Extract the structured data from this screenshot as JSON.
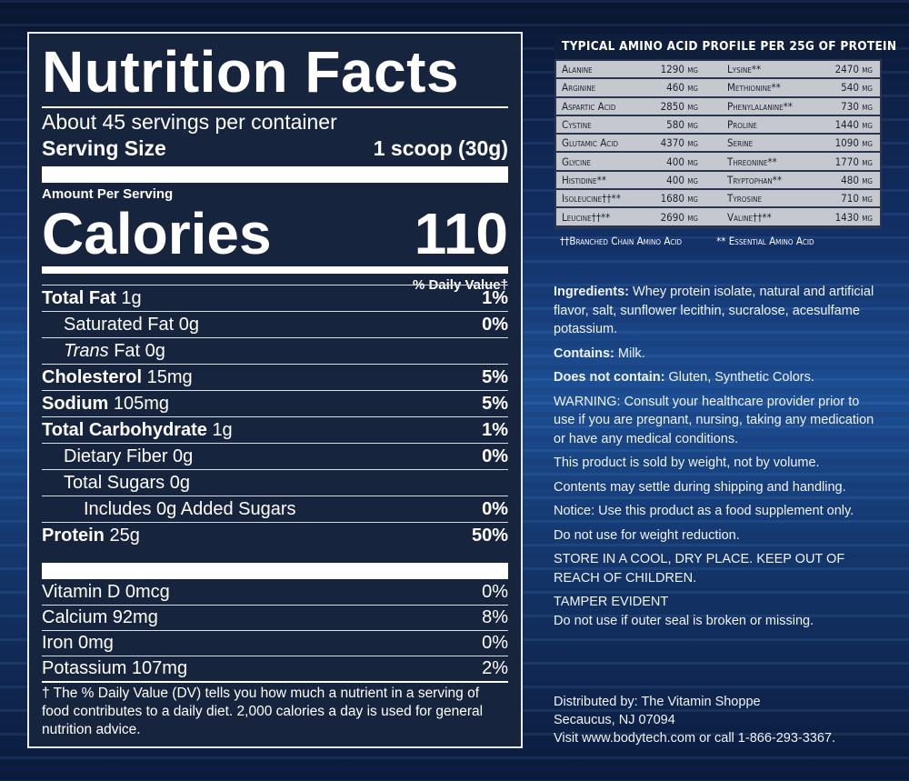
{
  "label": {
    "title": "Nutrition Facts",
    "servings": "About 45 servings per container",
    "serving_size_label": "Serving Size",
    "serving_size_value": "1 scoop (30g)",
    "amount_per_serving": "Amount Per Serving",
    "calories_label": "Calories",
    "calories_value": "110",
    "daily_value_header": "% Daily Value†",
    "nutrients": [
      {
        "name": "Total Fat",
        "amount": "1g",
        "dv": "1%"
      },
      {
        "name": "Saturated Fat",
        "amount": "0g",
        "dv": "0%"
      },
      {
        "name": "Trans",
        "suffix": "Fat 0g",
        "dv": ""
      },
      {
        "name": "Cholesterol",
        "amount": "15mg",
        "dv": "5%"
      },
      {
        "name": "Sodium",
        "amount": "105mg",
        "dv": "5%"
      },
      {
        "name": "Total Carbohydrate",
        "amount": "1g",
        "dv": "1%"
      },
      {
        "name": "Dietary Fiber",
        "amount": "0g",
        "dv": "0%"
      },
      {
        "name": "Total Sugars",
        "amount": "0g",
        "dv": ""
      },
      {
        "name": "Includes 0g Added Sugars",
        "amount": "",
        "dv": "0%"
      },
      {
        "name": "Protein",
        "amount": "25g",
        "dv": "50%"
      }
    ],
    "vitamins": [
      {
        "name": "Vitamin D 0mcg",
        "dv": "0%"
      },
      {
        "name": "Calcium 92mg",
        "dv": "8%"
      },
      {
        "name": "Iron 0mg",
        "dv": "0%"
      },
      {
        "name": "Potassium 107mg",
        "dv": "2%"
      }
    ],
    "footnote": "† The % Daily Value (DV) tells you how much a nutrient in a serving of food contributes to a daily diet. 2,000 calories a day is used for general nutrition advice."
  },
  "amino": {
    "title": "TYPICAL AMINO ACID PROFILE PER 25G OF PROTEIN",
    "rows": [
      [
        "Alanine",
        "1290 mg",
        "Lysine**",
        "2470 mg"
      ],
      [
        "Arginine",
        "460 mg",
        "Methionine**",
        "540 mg"
      ],
      [
        "Aspartic Acid",
        "2850 mg",
        "Phenylalanine**",
        "730 mg"
      ],
      [
        "Cystine",
        "580 mg",
        "Proline",
        "1440 mg"
      ],
      [
        "Glutamic Acid",
        "4370 mg",
        "Serine",
        "1090 mg"
      ],
      [
        "Glycine",
        "400 mg",
        "Threonine**",
        "1770 mg"
      ],
      [
        "Histidine**",
        "400 mg",
        "Tryptophan**",
        "480 mg"
      ],
      [
        "Isoleucine††**",
        "1680 mg",
        "Tyrosine",
        "710 mg"
      ],
      [
        "Leucine††**",
        "2690 mg",
        "Valine††**",
        "1430 mg"
      ]
    ],
    "legend_bcaa": "††Branched Chain Amino Acid",
    "legend_essential": "** Essential Amino Acid"
  },
  "info": {
    "ingredients_label": "Ingredients:",
    "ingredients": " Whey protein isolate, natural and artificial flavor, salt, sunflower lecithin, sucralose, acesulfame potassium.",
    "contains_label": "Contains:",
    "contains": " Milk.",
    "not_contain_label": "Does not contain:",
    "not_contain": " Gluten, Synthetic Colors.",
    "warning": "WARNING: Consult your healthcare provider prior to use if you are pregnant, nursing, taking any medication or have any medical conditions.",
    "weight": "This product is sold by weight, not by volume.",
    "settle": "Contents may settle during shipping and handling.",
    "notice": "Notice: Use this product as a food supplement only.",
    "weight_reduction": "Do not use for weight reduction.",
    "store": "STORE IN A COOL, DRY PLACE. KEEP OUT OF REACH OF CHILDREN.",
    "tamper": "TAMPER EVIDENT",
    "seal": "Do not use if outer seal is broken or missing."
  },
  "distributor": {
    "line1": "Distributed by: The Vitamin Shoppe",
    "line2": "Secaucus, NJ 07094",
    "line3": "Visit www.bodytech.com or call 1-866-293-3367."
  }
}
